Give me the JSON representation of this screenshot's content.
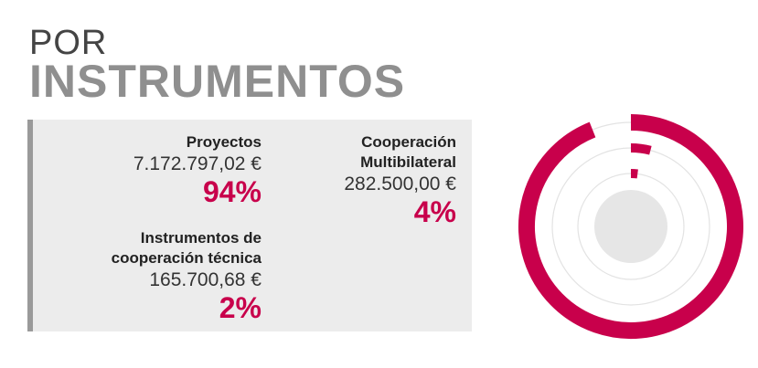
{
  "header": {
    "line1": "POR",
    "line2": "INSTRUMENTOS"
  },
  "items": [
    {
      "name_lines": [
        "Proyectos"
      ],
      "amount": "7.172.797,02 €",
      "percent": "94%"
    },
    {
      "name_lines": [
        "Cooperación",
        "Multibilateral"
      ],
      "amount": "282.500,00 €",
      "percent": "4%"
    },
    {
      "name_lines": [
        "Instrumentos de",
        "cooperación técnica"
      ],
      "amount": "165.700,68 €",
      "percent": "2%"
    }
  ],
  "colors": {
    "accent": "#c8004b",
    "track": "#e3e3e3",
    "center": "#e6e6e6",
    "panel": "#ececec",
    "panel_bar": "#9a9a9a"
  },
  "chart_data": {
    "type": "radial-bar",
    "categories": [
      "Proyectos",
      "Cooperación Multibilateral",
      "Instrumentos de cooperación técnica"
    ],
    "values": [
      94,
      4,
      2
    ],
    "amounts": [
      7172797.02,
      282500.0,
      165700.68
    ],
    "unit": "%",
    "ylim": [
      0,
      100
    ]
  }
}
